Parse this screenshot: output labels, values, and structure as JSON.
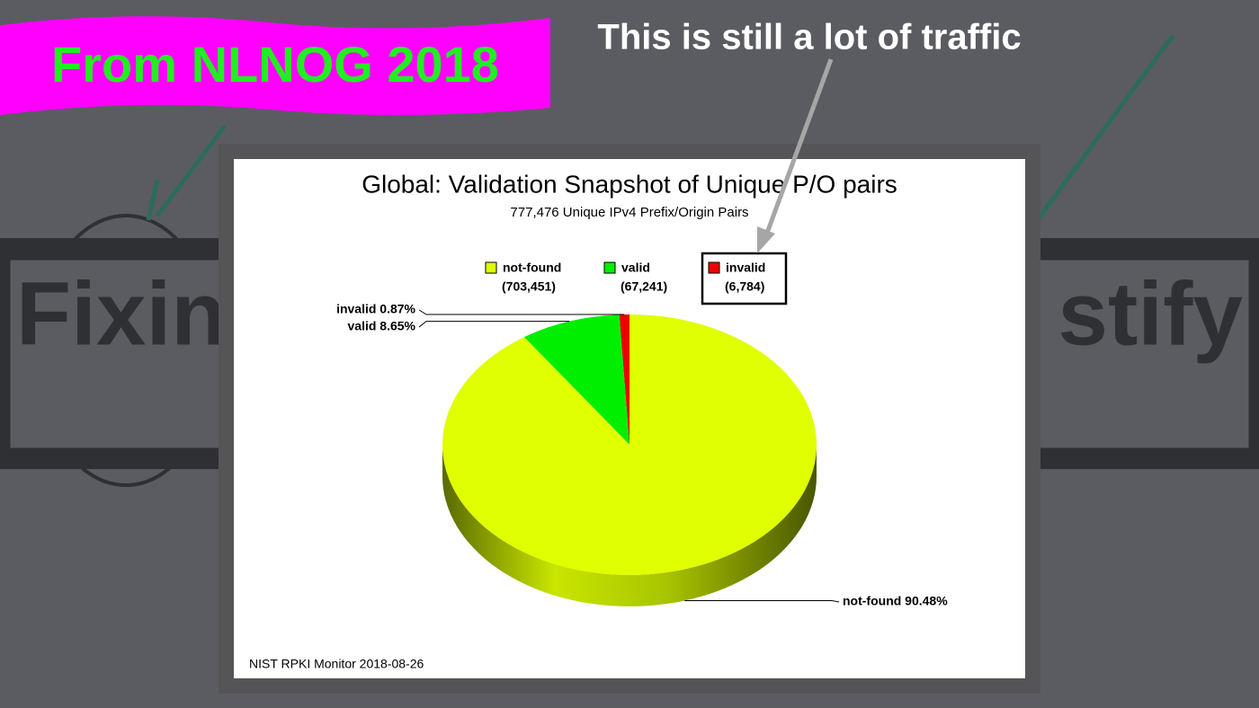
{
  "slide": {
    "banner": "From NLNOG 2018",
    "callout": "This is still a lot of traffic",
    "background_left": "Fixin",
    "background_right": "stify"
  },
  "chart_data": {
    "type": "pie",
    "title": "Global: Validation Snapshot of Unique P/O pairs",
    "subtitle": "777,476 Unique IPv4 Prefix/Origin Pairs",
    "categories": [
      "not-found",
      "valid",
      "invalid"
    ],
    "values": [
      703451,
      67241,
      6784
    ],
    "value_labels": [
      "(703,451)",
      "(67,241)",
      "(6,784)"
    ],
    "percentages": [
      90.48,
      8.65,
      0.87
    ],
    "slice_labels": [
      "not-found 90.48%",
      "valid 8.65%",
      "invalid 0.87%"
    ],
    "colors": [
      "#e0ff00",
      "#00ee00",
      "#ee0000"
    ],
    "footer": "NIST RPKI Monitor 2018-08-26"
  }
}
